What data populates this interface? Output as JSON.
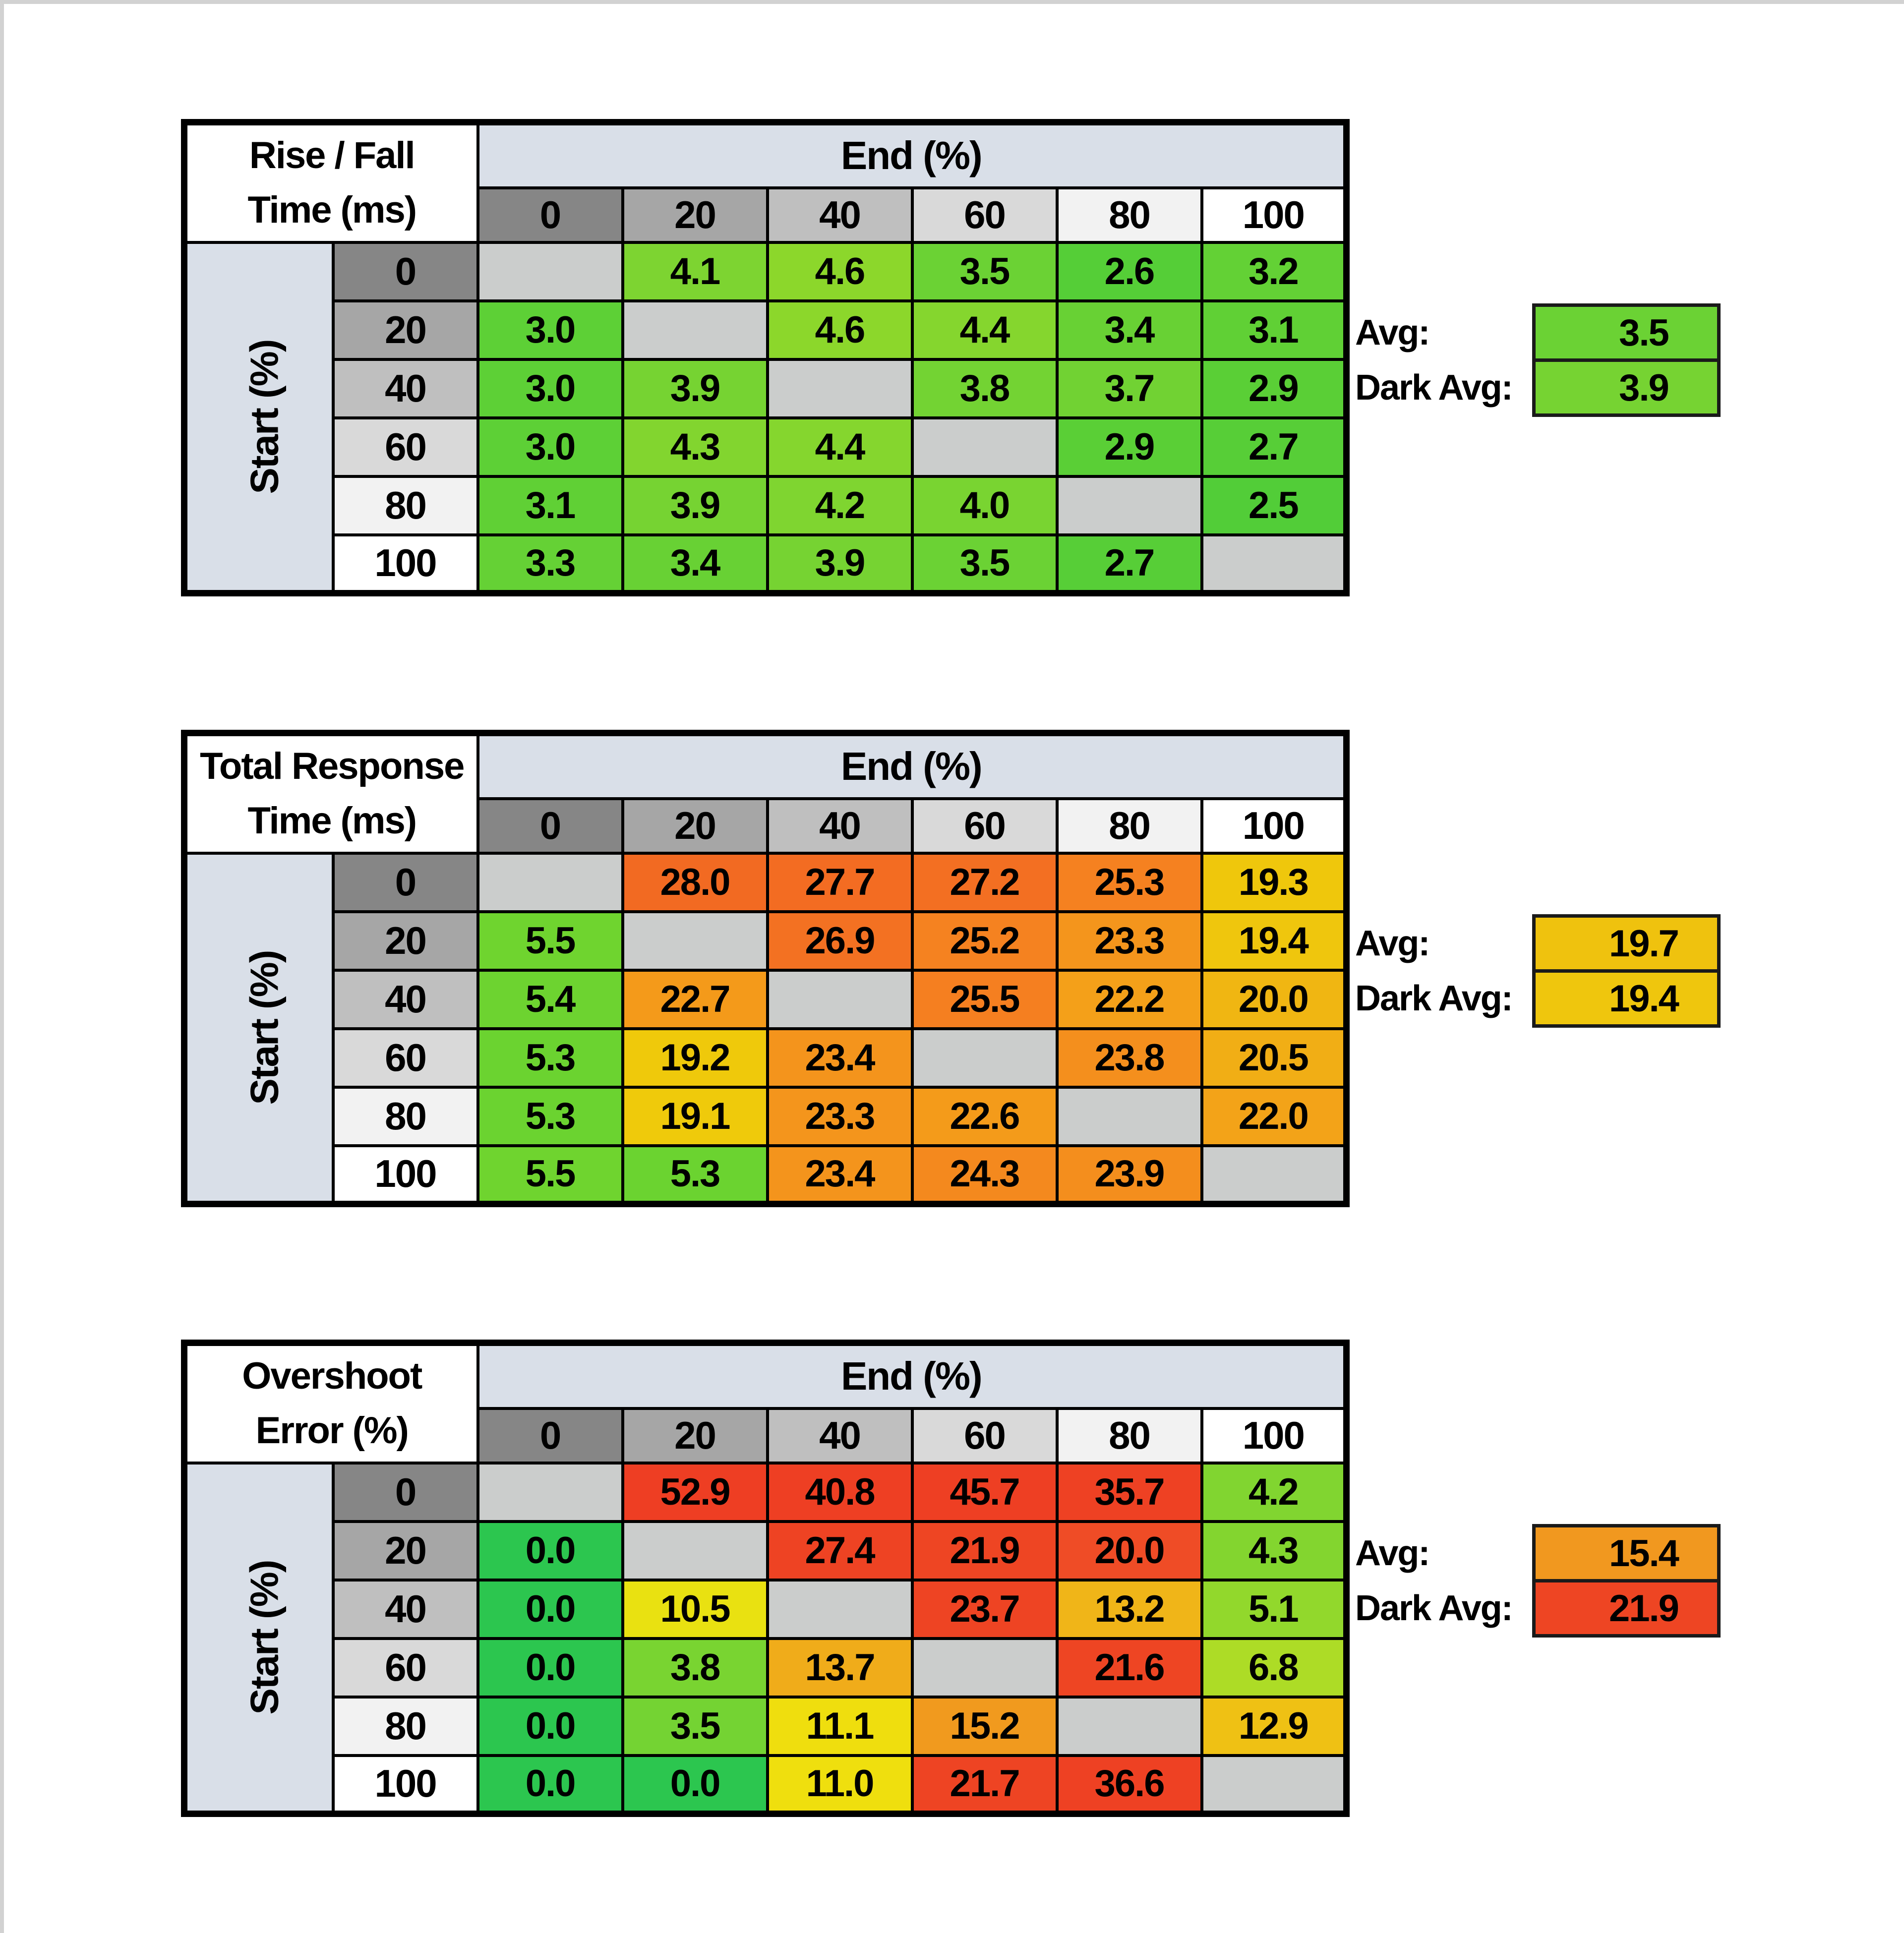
{
  "page": {
    "background": "#ffffff",
    "edge_color": "#d2d2d2"
  },
  "style": {
    "band_color": "#D9DFE8",
    "diagonal_color": "#CBCDCC",
    "header_colors": [
      "#868686",
      "#A6A6A6",
      "#BFBFBF",
      "#D9D9D9",
      "#F2F2F2",
      "#FFFFFF"
    ],
    "border_color": "#000000",
    "text_color": "#000000"
  },
  "chart_data": [
    {
      "type": "heatmap",
      "title": "Rise / Fall Time (ms)",
      "title_lines": [
        "Rise / Fall",
        "Time (ms)"
      ],
      "x_axis_label": "End (%)",
      "y_axis_label": "Start (%)",
      "x_categories": [
        "0",
        "20",
        "40",
        "60",
        "80",
        "100"
      ],
      "y_categories": [
        "0",
        "20",
        "40",
        "60",
        "80",
        "100"
      ],
      "values": [
        [
          null,
          "4.1",
          "4.6",
          "3.5",
          "2.6",
          "3.2"
        ],
        [
          "3.0",
          null,
          "4.6",
          "4.4",
          "3.4",
          "3.1"
        ],
        [
          "3.0",
          "3.9",
          null,
          "3.8",
          "3.7",
          "2.9"
        ],
        [
          "3.0",
          "4.3",
          "4.4",
          null,
          "2.9",
          "2.7"
        ],
        [
          "3.1",
          "3.9",
          "4.2",
          "4.0",
          null,
          "2.5"
        ],
        [
          "3.3",
          "3.4",
          "3.9",
          "3.5",
          "2.7",
          null
        ]
      ],
      "cell_colors": [
        [
          "",
          "#7DD431",
          "#8CD72B",
          "#6BD234",
          "#55CE37",
          "#63D135"
        ],
        [
          "#5DD036",
          "",
          "#8CD72B",
          "#85D62E",
          "#68D134",
          "#60D035"
        ],
        [
          "#5DD036",
          "#76D332",
          "",
          "#73D333",
          "#71D233",
          "#5ACF36"
        ],
        [
          "#5DD036",
          "#82D52F",
          "#85D62E",
          "",
          "#5ACF36",
          "#57CE37"
        ],
        [
          "#60D035",
          "#76D332",
          "#7FD530",
          "#79D431",
          "",
          "#52CD38"
        ],
        [
          "#65D135",
          "#68D134",
          "#76D332",
          "#6BD234",
          "#57CE37",
          ""
        ]
      ],
      "stats": [
        {
          "label": "Avg:",
          "value": "3.5",
          "color": "#6BD234"
        },
        {
          "label": "Dark Avg:",
          "value": "3.9",
          "color": "#76D332"
        }
      ]
    },
    {
      "type": "heatmap",
      "title": "Total Response Time (ms)",
      "title_lines": [
        "Total Response",
        "Time (ms)"
      ],
      "x_axis_label": "End (%)",
      "y_axis_label": "Start (%)",
      "x_categories": [
        "0",
        "20",
        "40",
        "60",
        "80",
        "100"
      ],
      "y_categories": [
        "0",
        "20",
        "40",
        "60",
        "80",
        "100"
      ],
      "values": [
        [
          null,
          "28.0",
          "27.7",
          "27.2",
          "25.3",
          "19.3"
        ],
        [
          "5.5",
          null,
          "26.9",
          "25.2",
          "23.3",
          "19.4"
        ],
        [
          "5.4",
          "22.7",
          null,
          "25.5",
          "22.2",
          "20.0"
        ],
        [
          "5.3",
          "19.2",
          "23.4",
          null,
          "23.8",
          "20.5"
        ],
        [
          "5.3",
          "19.1",
          "23.3",
          "22.6",
          null,
          "22.0"
        ],
        [
          "5.5",
          "5.3",
          "23.4",
          "24.3",
          "23.9",
          null
        ]
      ],
      "cell_colors": [
        [
          "",
          "#F26A22",
          "#F36C22",
          "#F36F22",
          "#F58120",
          "#EFC70C"
        ],
        [
          "#6FD42F",
          "",
          "#F37122",
          "#F58220",
          "#F4951C",
          "#EFC60D"
        ],
        [
          "#6DD330",
          "#F49A1A",
          "",
          "#F57F20",
          "#F4A019",
          "#F0B612"
        ],
        [
          "#6BD330",
          "#EFC90B",
          "#F4941C",
          "",
          "#F48F1D",
          "#F1AE15"
        ],
        [
          "#6BD330",
          "#EFCA0B",
          "#F4951C",
          "#F49B1A",
          "",
          "#F3A318"
        ],
        [
          "#6FD42F",
          "#6BD330",
          "#F4941C",
          "#F4891E",
          "#F48E1D",
          ""
        ]
      ],
      "stats": [
        {
          "label": "Avg:",
          "value": "19.7",
          "color": "#EFC20E"
        },
        {
          "label": "Dark Avg:",
          "value": "19.4",
          "color": "#EFC60D"
        }
      ]
    },
    {
      "type": "heatmap",
      "title": "Overshoot Error (%)",
      "title_lines": [
        "Overshoot",
        "Error (%)"
      ],
      "x_axis_label": "End (%)",
      "y_axis_label": "Start (%)",
      "x_categories": [
        "0",
        "20",
        "40",
        "60",
        "80",
        "100"
      ],
      "y_categories": [
        "0",
        "20",
        "40",
        "60",
        "80",
        "100"
      ],
      "values": [
        [
          null,
          "52.9",
          "40.8",
          "45.7",
          "35.7",
          "4.2"
        ],
        [
          "0.0",
          null,
          "27.4",
          "21.9",
          "20.0",
          "4.3"
        ],
        [
          "0.0",
          "10.5",
          null,
          "23.7",
          "13.2",
          "5.1"
        ],
        [
          "0.0",
          "3.8",
          "13.7",
          null,
          "21.6",
          "6.8"
        ],
        [
          "0.0",
          "3.5",
          "11.1",
          "15.2",
          null,
          "12.9"
        ],
        [
          "0.0",
          "0.0",
          "11.0",
          "21.7",
          "36.6",
          null
        ]
      ],
      "cell_colors": [
        [
          "",
          "#EE3E23",
          "#EE3F23",
          "#EE3F23",
          "#EE4123",
          "#81D530"
        ],
        [
          "#2CC64F",
          "",
          "#EE4323",
          "#EE4523",
          "#EF4C26",
          "#83D52F"
        ],
        [
          "#2CC64F",
          "#E9E111",
          "",
          "#EE4423",
          "#F0B518",
          "#92D82C"
        ],
        [
          "#2CC64F",
          "#79D431",
          "#F0AC1A",
          "",
          "#EE4523",
          "#ADDC26"
        ],
        [
          "#2CC64F",
          "#74D333",
          "#EFDE0E",
          "#F19A1E",
          "",
          "#EFC114"
        ],
        [
          "#2CC64F",
          "#2CC64F",
          "#EFDF0E",
          "#EE4423",
          "#EE4123",
          ""
        ]
      ],
      "stats": [
        {
          "label": "Avg:",
          "value": "15.4",
          "color": "#F1981F"
        },
        {
          "label": "Dark Avg:",
          "value": "21.9",
          "color": "#EE4523"
        }
      ]
    }
  ]
}
